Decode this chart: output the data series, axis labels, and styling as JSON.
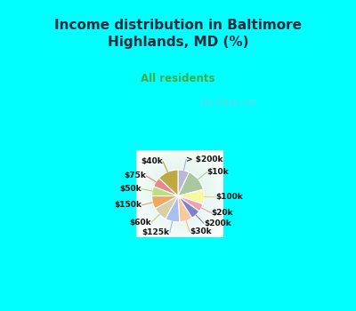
{
  "title": "Income distribution in Baltimore\nHighlands, MD (%)",
  "subtitle": "All residents",
  "watermark": "City-Data.com",
  "labels": [
    "> $200k",
    "$10k",
    "$100k",
    "$20k",
    "$200k",
    "$30k",
    "$125k",
    "$60k",
    "$150k",
    "$50k",
    "$75k",
    "$40k"
  ],
  "values": [
    7,
    14,
    9,
    5,
    6,
    8,
    9,
    9,
    8,
    6,
    6,
    13
  ],
  "colors": [
    "#b8b8d8",
    "#a8c8a0",
    "#f8f8a0",
    "#f0a0b0",
    "#8080c8",
    "#f8c8a0",
    "#a8c0f0",
    "#d8d0a8",
    "#f0a860",
    "#b8e080",
    "#e88888",
    "#c0a840"
  ],
  "bg_color_top": "#00ffff",
  "bg_color_chart": "#d8f0e8",
  "title_color": "#2a2a3e",
  "subtitle_color": "#44aa44",
  "line_colors": [
    "#a8a8c8",
    "#a8c898",
    "#d8d870",
    "#e898a8",
    "#7878b8",
    "#e8b878",
    "#98b0e0",
    "#c8c098",
    "#e09858",
    "#a8d070",
    "#d87878",
    "#b09830"
  ],
  "startangle": 90
}
